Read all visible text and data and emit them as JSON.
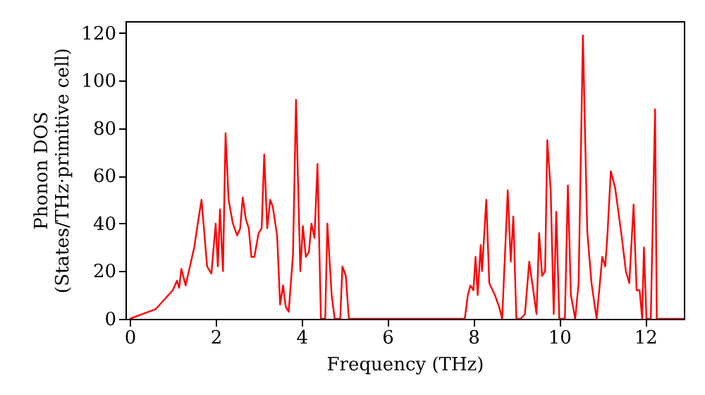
{
  "chart_data": {
    "type": "line",
    "xlabel": "Frequency (THz)",
    "ylabel": "Phonon DOS\n(States/THz·primitive cell)",
    "xlim": [
      -0.1,
      12.9
    ],
    "ylim": [
      0,
      125
    ],
    "xticks": [
      0,
      2,
      4,
      6,
      8,
      10,
      12
    ],
    "yticks": [
      0,
      20,
      40,
      60,
      80,
      100,
      120
    ],
    "grid": false,
    "series": [
      {
        "color": "#ff0000",
        "x": [
          0,
          0.3,
          0.6,
          0.8,
          1.0,
          1.1,
          1.15,
          1.2,
          1.3,
          1.4,
          1.5,
          1.6,
          1.67,
          1.8,
          1.9,
          2.0,
          2.05,
          2.1,
          2.17,
          2.23,
          2.3,
          2.4,
          2.5,
          2.57,
          2.63,
          2.7,
          2.77,
          2.83,
          2.9,
          3.0,
          3.07,
          3.13,
          3.2,
          3.27,
          3.33,
          3.43,
          3.5,
          3.57,
          3.63,
          3.7,
          3.8,
          3.87,
          3.97,
          4.03,
          4.1,
          4.17,
          4.23,
          4.3,
          4.37,
          4.45,
          4.55,
          4.6,
          4.7,
          4.77,
          4.9,
          4.95,
          5.03,
          5.1,
          7.8,
          7.87,
          7.93,
          8.0,
          8.05,
          8.1,
          8.17,
          8.2,
          8.3,
          8.37,
          8.5,
          8.6,
          8.67,
          8.8,
          8.87,
          8.93,
          9.0,
          9.1,
          9.2,
          9.3,
          9.37,
          9.47,
          9.53,
          9.6,
          9.67,
          9.72,
          9.8,
          9.87,
          9.93,
          10.0,
          10.13,
          10.2,
          10.27,
          10.37,
          10.45,
          10.55,
          10.65,
          10.75,
          10.87,
          11.0,
          11.07,
          11.12,
          11.2,
          11.3,
          11.45,
          11.55,
          11.63,
          11.73,
          11.8,
          11.87,
          11.93,
          11.97,
          12.03,
          12.13,
          12.23,
          12.27,
          12.9
        ],
        "values": [
          0,
          2,
          4,
          8,
          12,
          16,
          13,
          21,
          14,
          22,
          30,
          42,
          50,
          22,
          19,
          40,
          22,
          46,
          20,
          78,
          50,
          40,
          35,
          38,
          51,
          42,
          38,
          26,
          26,
          36,
          38,
          69,
          38,
          50,
          47,
          35,
          6,
          14,
          5,
          3,
          27,
          92,
          20,
          39,
          26,
          28,
          40,
          34,
          65,
          0,
          0,
          40,
          10,
          0,
          0,
          22,
          18,
          0,
          0,
          10,
          14,
          12,
          26,
          10,
          31,
          20,
          50,
          15,
          10,
          5,
          0,
          54,
          24,
          43,
          0,
          0,
          2,
          24,
          15,
          2,
          36,
          18,
          20,
          75,
          54,
          2,
          45,
          0,
          0,
          56,
          10,
          0,
          15,
          119,
          37,
          15,
          0,
          26,
          22,
          35,
          62,
          55,
          35,
          20,
          15,
          48,
          12,
          12,
          0,
          30,
          0,
          0,
          88,
          0,
          0
        ]
      }
    ]
  }
}
